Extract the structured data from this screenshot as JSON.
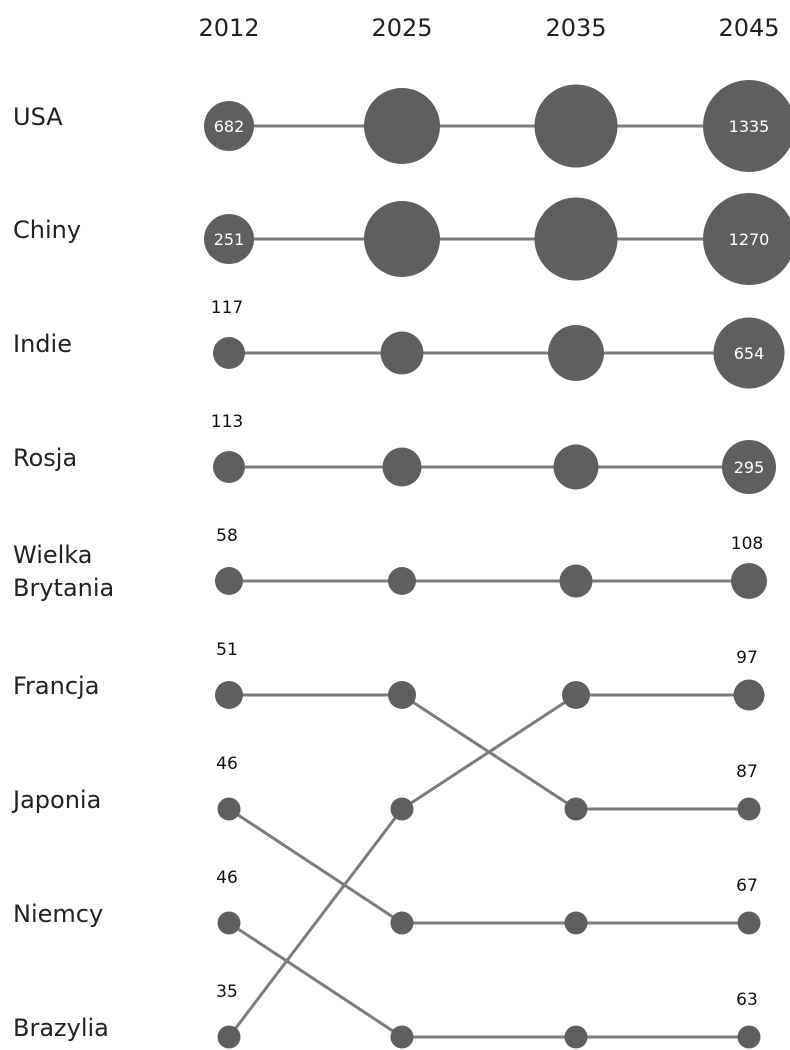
{
  "chart_data": {
    "type": "bump-bubble",
    "title": "",
    "years": [
      "2012",
      "2025",
      "2035",
      "2045"
    ],
    "countries": [
      {
        "name": "USA",
        "rank_label": "USA"
      },
      {
        "name": "Chiny",
        "rank_label": "Chiny"
      },
      {
        "name": "Indie",
        "rank_label": "Indie"
      },
      {
        "name": "Rosja",
        "rank_label": "Rosja"
      },
      {
        "name": "Wielka Brytania",
        "rank_label": "Wielka Brytania"
      },
      {
        "name": "Francja",
        "rank_label": "Francja"
      },
      {
        "name": "Japonia",
        "rank_label": "Japonia"
      },
      {
        "name": "Niemcy",
        "rank_label": "Niemcy"
      },
      {
        "name": "Brazylia",
        "rank_label": "Brazylia"
      }
    ],
    "series": [
      {
        "name": "USA",
        "ranks": [
          1,
          1,
          1,
          1
        ],
        "values": [
          682,
          null,
          null,
          1335
        ]
      },
      {
        "name": "Chiny",
        "ranks": [
          2,
          2,
          2,
          2
        ],
        "values": [
          251,
          null,
          null,
          1270
        ]
      },
      {
        "name": "Indie",
        "ranks": [
          3,
          3,
          3,
          3
        ],
        "values": [
          117,
          null,
          null,
          654
        ]
      },
      {
        "name": "Rosja",
        "ranks": [
          4,
          4,
          4,
          4
        ],
        "values": [
          113,
          null,
          null,
          295
        ]
      },
      {
        "name": "Wielka Brytania",
        "ranks": [
          5,
          5,
          5,
          5
        ],
        "values": [
          58,
          null,
          null,
          108
        ]
      },
      {
        "name": "Francja",
        "ranks": [
          6,
          6,
          7,
          7
        ],
        "values": [
          51,
          null,
          null,
          87
        ]
      },
      {
        "name": "Japonia",
        "ranks": [
          7,
          8,
          8,
          8
        ],
        "values": [
          46,
          null,
          null,
          67
        ]
      },
      {
        "name": "Niemcy",
        "ranks": [
          8,
          9,
          9,
          9
        ],
        "values": [
          46,
          null,
          null,
          63
        ]
      },
      {
        "name": "Brazylia",
        "ranks": [
          9,
          7,
          6,
          6
        ],
        "values": [
          35,
          null,
          null,
          97
        ]
      }
    ],
    "row_end_labels": [
      "1335",
      "1270",
      "654",
      "295",
      "108",
      "97",
      "87",
      "67",
      "63"
    ],
    "row_start_labels": [
      "682",
      "251",
      "117",
      "113",
      "58",
      "51",
      "46",
      "46",
      "35"
    ],
    "marker_level_by_row_year": [
      [
        0.5,
        0.76,
        0.83,
        0.92
      ],
      [
        0.5,
        0.76,
        0.83,
        0.92
      ],
      [
        0.32,
        0.43,
        0.56,
        0.71
      ],
      [
        0.32,
        0.39,
        0.45,
        0.54
      ],
      [
        0.28,
        0.28,
        0.33,
        0.36
      ],
      [
        0.28,
        0.28,
        0.28,
        0.31
      ],
      [
        0.23,
        0.23,
        0.23,
        0.23
      ],
      [
        0.23,
        0.23,
        0.23,
        0.23
      ],
      [
        0.23,
        0.23,
        0.23,
        0.23
      ]
    ],
    "colors": {
      "marker": "#5f5f5f",
      "line": "#7c7c7c",
      "text": "#222222",
      "inner_text": "#ffffff"
    }
  }
}
